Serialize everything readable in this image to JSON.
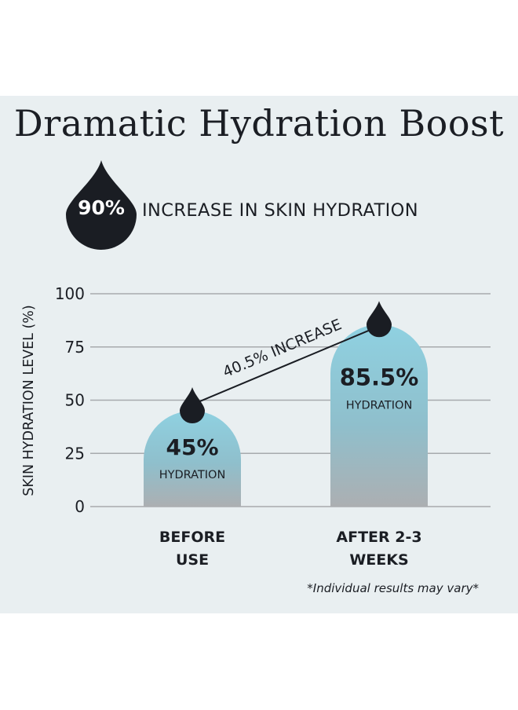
{
  "title": "Dramatic Hydration Boost",
  "badge": {
    "value": "90%",
    "headline": "INCREASE IN SKIN HYDRATION"
  },
  "chart_data": {
    "type": "bar",
    "ylabel": "SKIN HYDRATION LEVEL (%)",
    "yticks": [
      0,
      25,
      50,
      75,
      100
    ],
    "ylim": [
      0,
      100
    ],
    "grid": true,
    "categories": [
      {
        "line1": "BEFORE",
        "line2": "USE"
      },
      {
        "line1": "AFTER 2-3",
        "line2": "WEEKS"
      }
    ],
    "values": [
      45,
      85.5
    ],
    "value_labels": [
      "45%",
      "85.5%"
    ],
    "sub_label": "HYDRATION",
    "annotation": "40.5% INCREASE"
  },
  "footnote": "*Individual results may vary*",
  "colors": {
    "bar_top": "#8ccfdf",
    "bar_bottom": "#a9adb0",
    "drop": "#1a1d23",
    "background": "#e9eff1",
    "grid": "#a7aaad"
  }
}
